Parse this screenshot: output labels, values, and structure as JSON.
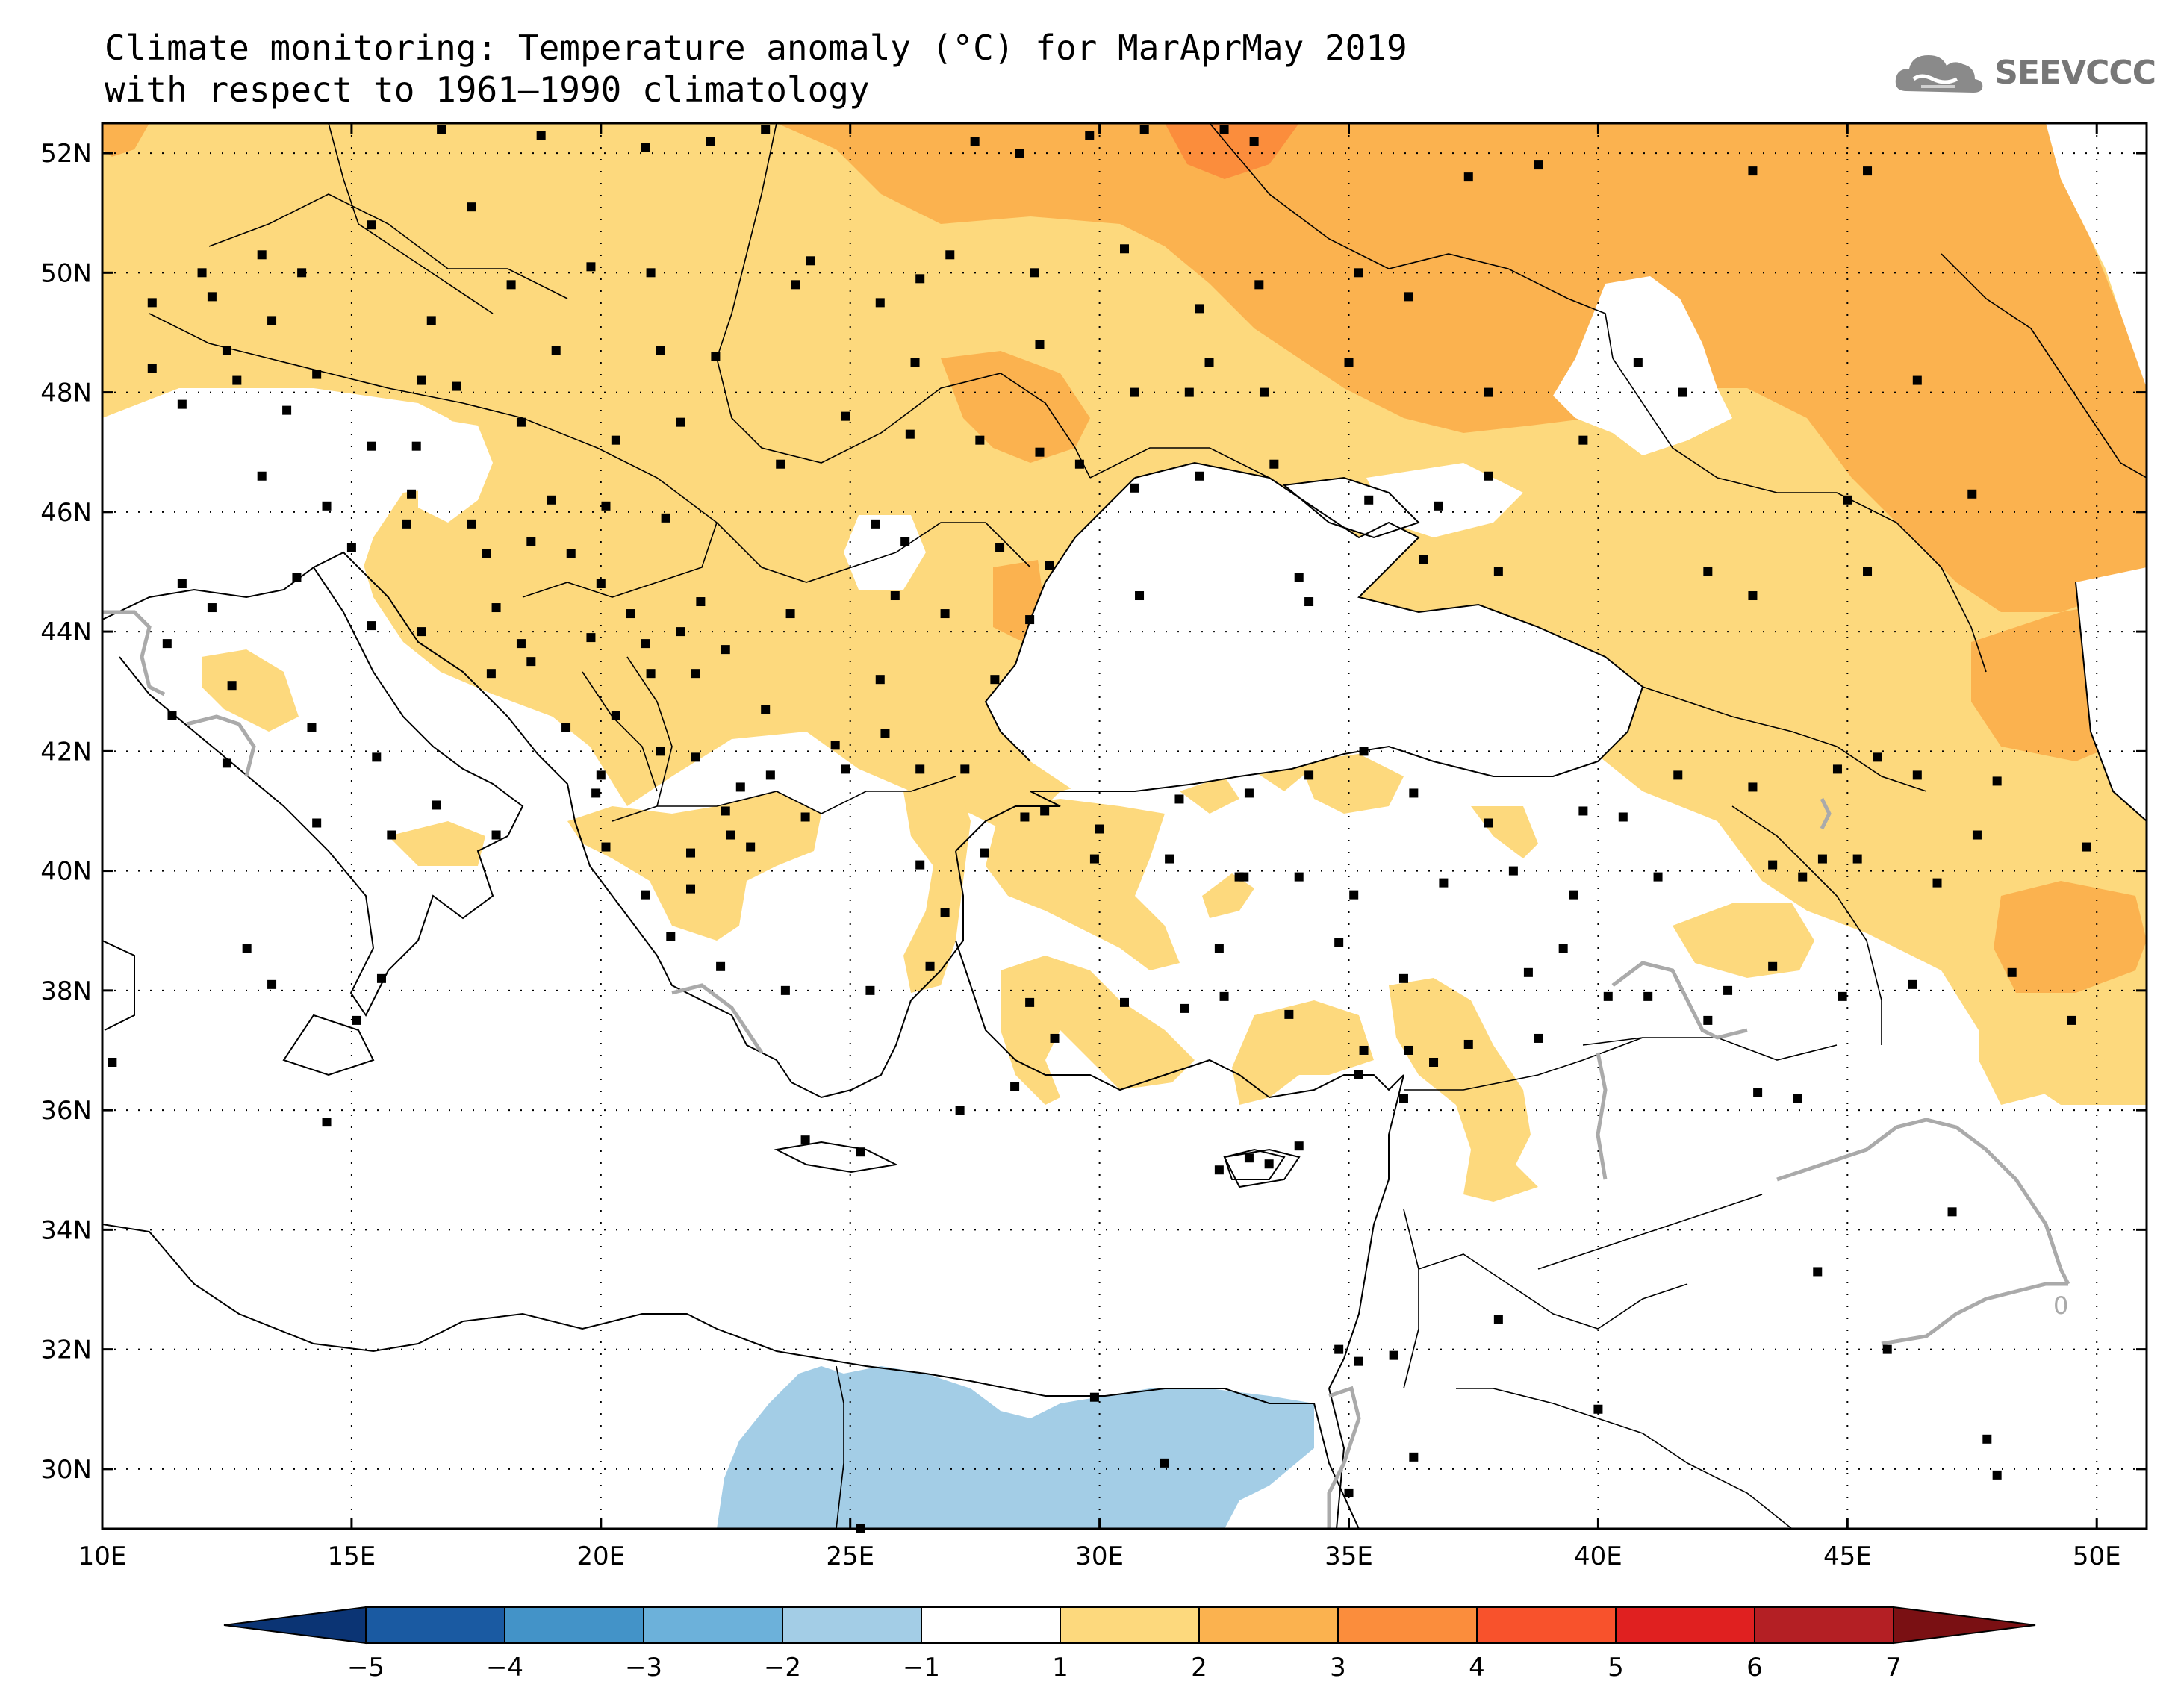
{
  "title": {
    "line1": "Climate monitoring: Temperature anomaly (°C) for MarAprMay 2019",
    "line2": "with respect to 1961–1990 climatology"
  },
  "logo": {
    "icon": "cloud-icon",
    "text": "SEEVCCC"
  },
  "map": {
    "lon_range": [
      10,
      51
    ],
    "lat_range": [
      29,
      52.5
    ],
    "lon_ticks": [
      {
        "value": 10,
        "label": "10E"
      },
      {
        "value": 15,
        "label": "15E"
      },
      {
        "value": 20,
        "label": "20E"
      },
      {
        "value": 25,
        "label": "25E"
      },
      {
        "value": 30,
        "label": "30E"
      },
      {
        "value": 35,
        "label": "35E"
      },
      {
        "value": 40,
        "label": "40E"
      },
      {
        "value": 45,
        "label": "45E"
      },
      {
        "value": 50,
        "label": "50E"
      }
    ],
    "lat_ticks": [
      {
        "value": 30,
        "label": "30N"
      },
      {
        "value": 32,
        "label": "32N"
      },
      {
        "value": 34,
        "label": "34N"
      },
      {
        "value": 36,
        "label": "36N"
      },
      {
        "value": 38,
        "label": "38N"
      },
      {
        "value": 40,
        "label": "40N"
      },
      {
        "value": 42,
        "label": "42N"
      },
      {
        "value": 44,
        "label": "44N"
      },
      {
        "value": 46,
        "label": "46N"
      },
      {
        "value": 48,
        "label": "48N"
      },
      {
        "value": 50,
        "label": "50N"
      },
      {
        "value": 52,
        "label": "52N"
      }
    ],
    "gridlines": true,
    "contour_label": "0"
  },
  "colorbar": {
    "min": -5,
    "max": 7,
    "step": 1,
    "colors": [
      "#1a5aa2",
      "#4393c8",
      "#6cb1da",
      "#a3cde6",
      "#ffffff",
      "#fdd97d",
      "#fbb24f",
      "#fb8d3c",
      "#f8522c",
      "#e02020",
      "#b41f24"
    ],
    "left_extend": "#0b3474",
    "right_extend": "#7a1013",
    "tick_labels": [
      "−5",
      "−4",
      "−3",
      "−2",
      "−1",
      "1",
      "2",
      "3",
      "4",
      "5",
      "6",
      "7"
    ]
  }
}
